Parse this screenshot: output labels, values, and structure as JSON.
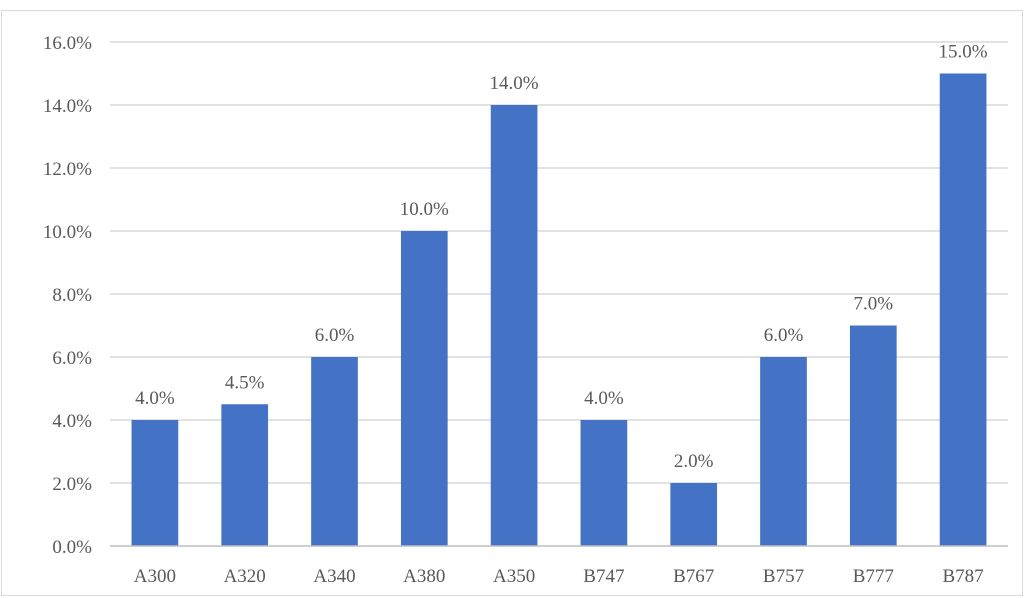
{
  "chart_data": {
    "type": "bar",
    "categories": [
      "A300",
      "A320",
      "A340",
      "A380",
      "A350",
      "B747",
      "B767",
      "B757",
      "B777",
      "B787"
    ],
    "values": [
      4.0,
      4.5,
      6.0,
      10.0,
      14.0,
      4.0,
      2.0,
      6.0,
      7.0,
      15.0
    ],
    "data_labels": [
      "4.0%",
      "4.5%",
      "6.0%",
      "10.0%",
      "14.0%",
      "4.0%",
      "2.0%",
      "6.0%",
      "7.0%",
      "15.0%"
    ],
    "y_ticks": [
      0,
      2,
      4,
      6,
      8,
      10,
      12,
      14,
      16
    ],
    "y_tick_labels": [
      "0.0%",
      "2.0%",
      "4.0%",
      "6.0%",
      "8.0%",
      "10.0%",
      "12.0%",
      "14.0%",
      "16.0%"
    ],
    "ylim": [
      0,
      16
    ],
    "grid": true,
    "legend": "none",
    "bar_color": "#4472c4",
    "gridline_color": "#d9d9d9",
    "label_color": "#595959"
  }
}
